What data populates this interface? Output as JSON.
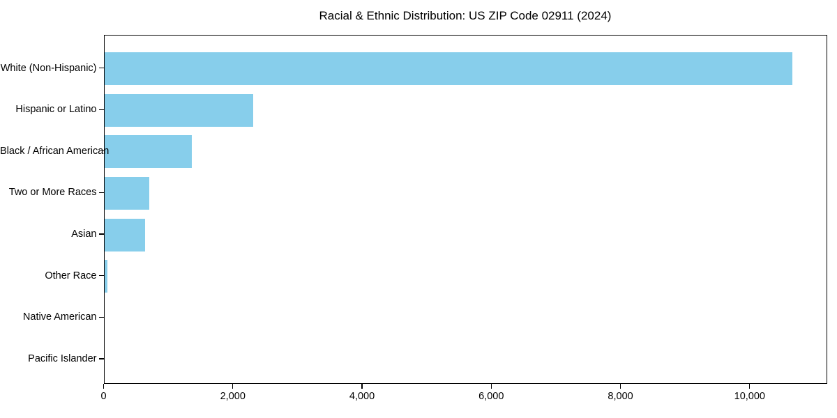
{
  "chart": {
    "bar_color": "#87CEEB",
    "axis_color": "#000000",
    "background_color": "#ffffff",
    "text_color": "#000000"
  },
  "chart_data": {
    "type": "bar",
    "orientation": "horizontal",
    "title": "Racial & Ethnic Distribution: US ZIP Code 02911 (2024)",
    "xlabel": "",
    "ylabel": "",
    "categories": [
      "White (Non-Hispanic)",
      "Hispanic or Latino",
      "Black / African American",
      "Two or More Races",
      "Asian",
      "Other Race",
      "Native American",
      "Pacific Islander"
    ],
    "values": [
      10650,
      2300,
      1350,
      700,
      630,
      50,
      0,
      0
    ],
    "xlim": [
      0,
      11200
    ],
    "x_ticks": [
      0,
      2000,
      4000,
      6000,
      8000,
      10000
    ],
    "x_tick_labels": [
      "0",
      "2,000",
      "4,000",
      "6,000",
      "8,000",
      "10,000"
    ],
    "grid": false,
    "legend": null
  }
}
